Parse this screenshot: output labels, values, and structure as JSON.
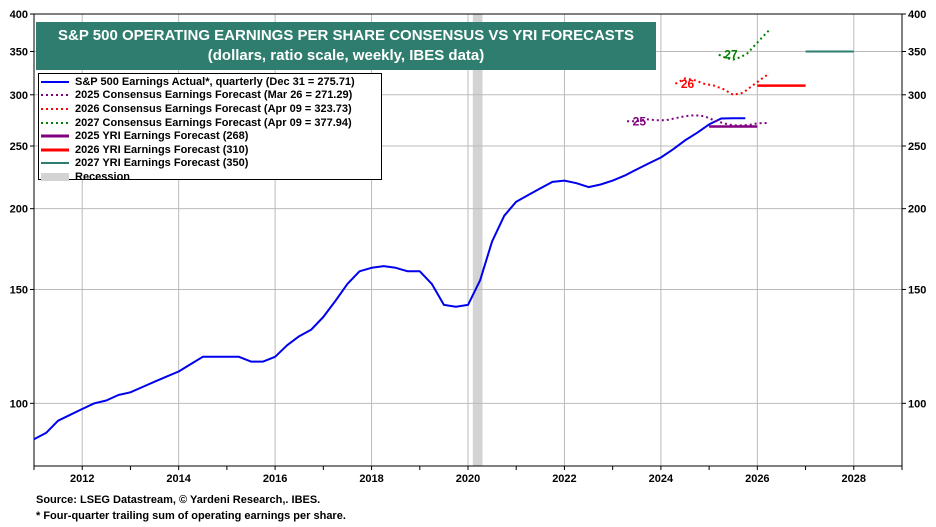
{
  "chart_data": {
    "type": "line",
    "title": "S&P 500 OPERATING EARNINGS PER SHARE CONSENSUS VS YRI FORECASTS",
    "subtitle": "(dollars, ratio scale, weekly, IBES data)",
    "yscale": "log",
    "ylim": [
      80,
      400
    ],
    "xlim": [
      2011.0,
      2029.0
    ],
    "yticks": [
      100,
      150,
      200,
      250,
      300,
      350,
      400
    ],
    "ytick_labels": [
      "100",
      "150",
      "200",
      "250",
      "300",
      "350",
      "400"
    ],
    "xticks": [
      2012,
      2014,
      2016,
      2018,
      2020,
      2022,
      2024,
      2026,
      2028
    ],
    "xtick_labels": [
      "2012",
      "2014",
      "2016",
      "2018",
      "2020",
      "2022",
      "2024",
      "2026",
      "2028"
    ],
    "recession": {
      "start": 2020.1,
      "end": 2020.3,
      "color": "#d3d3d3"
    },
    "series": [
      {
        "name": "S&P 500 Earnings Actual*, quarterly (Dec 31 = 275.71)",
        "color": "#0000ee",
        "style": "solid",
        "x": [
          2011.0,
          2011.25,
          2011.5,
          2011.75,
          2012.0,
          2012.25,
          2012.5,
          2012.75,
          2013.0,
          2013.25,
          2013.5,
          2013.75,
          2014.0,
          2014.25,
          2014.5,
          2014.75,
          2015.0,
          2015.25,
          2015.5,
          2015.75,
          2016.0,
          2016.25,
          2016.5,
          2016.75,
          2017.0,
          2017.25,
          2017.5,
          2017.75,
          2018.0,
          2018.25,
          2018.5,
          2018.75,
          2019.0,
          2019.25,
          2019.5,
          2019.75,
          2020.0,
          2020.25,
          2020.5,
          2020.75,
          2021.0,
          2021.25,
          2021.5,
          2021.75,
          2022.0,
          2022.25,
          2022.5,
          2022.75,
          2023.0,
          2023.25,
          2023.5,
          2023.75,
          2024.0,
          2024.25,
          2024.5,
          2024.75,
          2025.0,
          2025.25,
          2025.5,
          2025.75
        ],
        "y": [
          88,
          90,
          94,
          96,
          98,
          100,
          101,
          103,
          104,
          106,
          108,
          110,
          112,
          115,
          118,
          118,
          118,
          118,
          116,
          116,
          118,
          123,
          127,
          130,
          136,
          144,
          153,
          160,
          162,
          163,
          162,
          160,
          160,
          153,
          142,
          141,
          142,
          155,
          178,
          195,
          205,
          210,
          215,
          220,
          221,
          219,
          216,
          218,
          221,
          225,
          230,
          235,
          240,
          247,
          255,
          262,
          270,
          275.71,
          276,
          276
        ]
      },
      {
        "name": "2025 Consensus Earnings Forecast (Mar 26 = 271.29)",
        "color": "#800080",
        "style": "dotted",
        "x": [
          2023.3,
          2023.5,
          2023.7,
          2023.9,
          2024.1,
          2024.3,
          2024.5,
          2024.7,
          2024.9,
          2025.1,
          2025.3,
          2025.5,
          2025.7,
          2025.9,
          2026.0,
          2026.2
        ],
        "y": [
          273,
          273,
          275,
          274,
          274,
          276,
          278,
          279,
          278,
          274,
          271,
          269,
          269,
          270,
          271,
          271.29
        ]
      },
      {
        "name": "2026 Consensus Earnings Forecast (Apr 09 = 323.73)",
        "color": "#ff0000",
        "style": "dotted",
        "x": [
          2024.3,
          2024.5,
          2024.7,
          2024.9,
          2025.1,
          2025.3,
          2025.5,
          2025.7,
          2025.9,
          2026.1,
          2026.25
        ],
        "y": [
          312,
          318,
          316,
          312,
          310,
          306,
          300,
          302,
          310,
          318,
          323.73
        ]
      },
      {
        "name": "2027 Consensus Earnings Forecast (Apr 09 = 377.94)",
        "color": "#008000",
        "style": "dotted",
        "x": [
          2025.2,
          2025.35,
          2025.5,
          2025.65,
          2025.8,
          2025.95,
          2026.1,
          2026.25
        ],
        "y": [
          346,
          342,
          340,
          343,
          348,
          358,
          368,
          377.94
        ]
      },
      {
        "name": "2025 YRI Earnings Forecast (268)",
        "color": "#800080",
        "style": "solid-thick",
        "x": [
          2025.0,
          2026.0
        ],
        "y": [
          268,
          268
        ]
      },
      {
        "name": "2026 YRI Earnings Forecast (310)",
        "color": "#ff0000",
        "style": "solid-thick",
        "x": [
          2026.0,
          2027.0
        ],
        "y": [
          310,
          310
        ]
      },
      {
        "name": "2027 YRI Earnings Forecast (350)",
        "color": "#2e7d6e",
        "style": "solid",
        "x": [
          2027.0,
          2028.0
        ],
        "y": [
          350,
          350
        ]
      }
    ],
    "annotations": [
      {
        "text": "25",
        "color": "#800080",
        "x": 2023.0,
        "y": 273
      },
      {
        "text": "26",
        "color": "#ff0000",
        "x": 2024.0,
        "y": 312
      },
      {
        "text": "27",
        "color": "#008000",
        "x": 2024.9,
        "y": 346
      }
    ]
  },
  "title": "S&P 500 OPERATING EARNINGS PER SHARE CONSENSUS VS YRI FORECASTS",
  "subtitle": "(dollars, ratio scale, weekly, IBES data)",
  "legend": [
    {
      "label": "S&P 500 Earnings Actual*, quarterly (Dec 31 = 275.71)",
      "color": "#0000ee",
      "style": "solid"
    },
    {
      "label": "2025 Consensus Earnings Forecast (Mar 26 = 271.29)",
      "color": "#800080",
      "style": "dotted"
    },
    {
      "label": "2026 Consensus Earnings Forecast (Apr 09 = 323.73)",
      "color": "#ff0000",
      "style": "dotted"
    },
    {
      "label": "2027 Consensus Earnings Forecast (Apr 09 = 377.94)",
      "color": "#008000",
      "style": "dotted"
    },
    {
      "label": "2025 YRI Earnings Forecast (268)",
      "color": "#800080",
      "style": "thick"
    },
    {
      "label": "2026 YRI Earnings Forecast (310)",
      "color": "#ff0000",
      "style": "thick"
    },
    {
      "label": "2027 YRI Earnings Forecast (350)",
      "color": "#2e7d6e",
      "style": "solid"
    },
    {
      "label": "Recession",
      "color": "#d3d3d3",
      "style": "block"
    }
  ],
  "footer": {
    "source": "Source: LSEG Datastream, © Yardeni Research,. IBES.",
    "note": "* Four-quarter trailing sum of operating earnings per share."
  }
}
